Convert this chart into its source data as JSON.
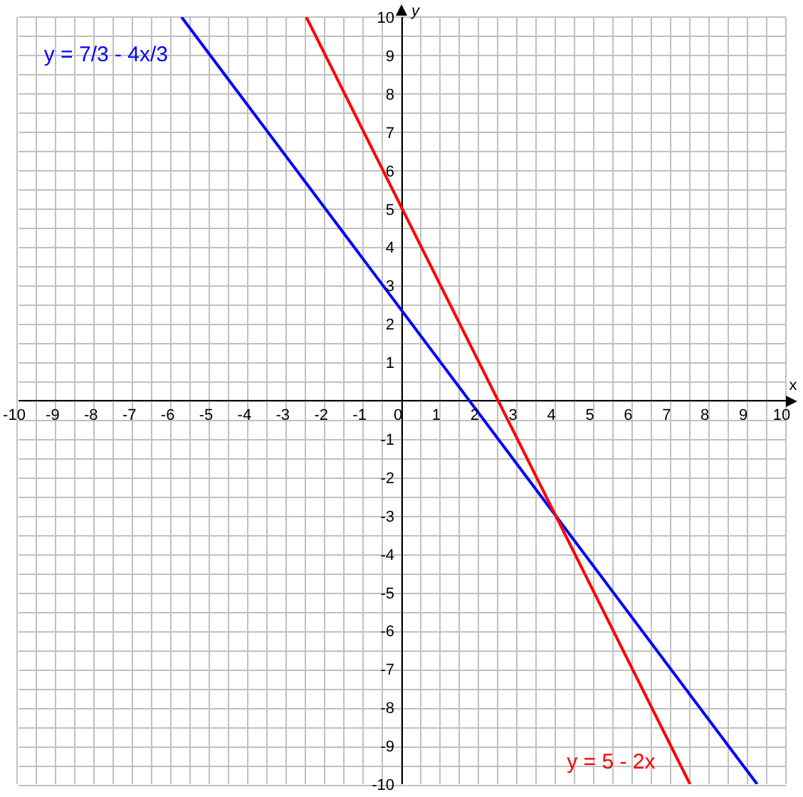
{
  "chart_data": {
    "type": "line",
    "xlabel": "x",
    "ylabel": "y",
    "xlim": [
      -10,
      10
    ],
    "ylim": [
      -10,
      10
    ],
    "xticks": [
      -10,
      -9,
      -8,
      -7,
      -6,
      -5,
      -4,
      -3,
      -2,
      -1,
      0,
      1,
      2,
      3,
      4,
      5,
      6,
      7,
      8,
      9,
      10
    ],
    "yticks": [
      -10,
      -9,
      -8,
      -7,
      -6,
      -5,
      -4,
      -3,
      -2,
      -1,
      {
        "value": 0,
        "label": null
      },
      1,
      2,
      3,
      4,
      5,
      6,
      7,
      8,
      9,
      10
    ],
    "grid": true,
    "marker": "none",
    "line_style": "solid",
    "series": [
      {
        "name": "y = 7/3 - 4x/3",
        "color": "#0000ff",
        "x": [
          -5.75,
          9.25
        ],
        "values": [
          10,
          -10
        ]
      },
      {
        "name": "y = 5 - 2x",
        "color": "#ff0000",
        "x": [
          -2.5,
          7.5
        ],
        "values": [
          10,
          -10
        ]
      }
    ]
  }
}
